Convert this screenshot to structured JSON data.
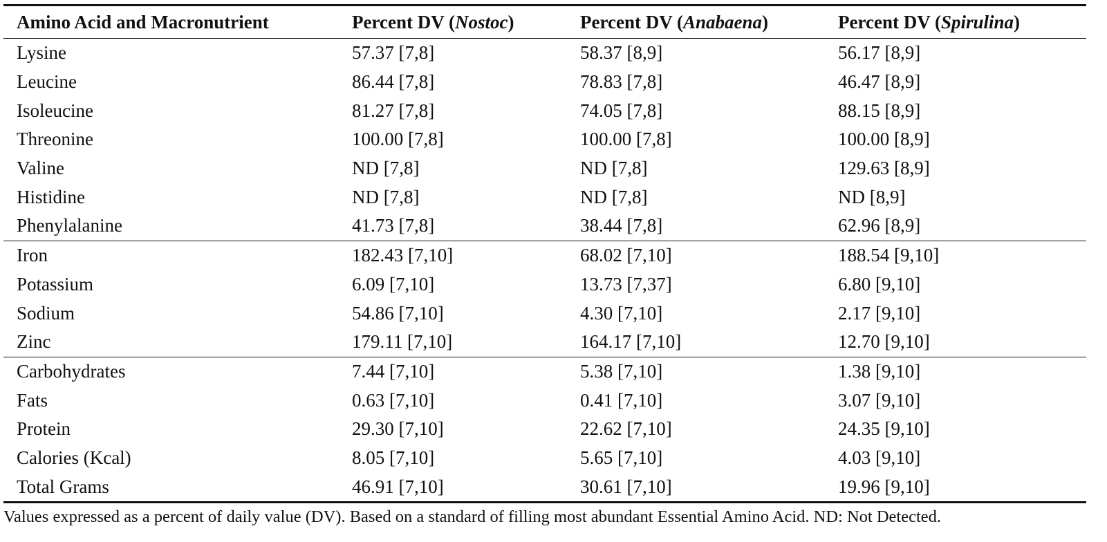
{
  "table": {
    "headers": {
      "col0": "Amino Acid and Macronutrient",
      "col1_prefix": "Percent DV (",
      "col1_species": "Nostoc",
      "col2_prefix": "Percent DV (",
      "col2_species": "Anabaena",
      "col3_prefix": "Percent DV (",
      "col3_species": "Spirulina",
      "suffix": ")"
    },
    "rows": [
      {
        "name": "Lysine",
        "nostoc": "57.37 [7,8]",
        "anabaena": "58.37 [8,9]",
        "spirulina": "56.17 [8,9]"
      },
      {
        "name": "Leucine",
        "nostoc": "86.44 [7,8]",
        "anabaena": "78.83 [7,8]",
        "spirulina": "46.47 [8,9]"
      },
      {
        "name": "Isoleucine",
        "nostoc": "81.27 [7,8]",
        "anabaena": "74.05 [7,8]",
        "spirulina": "88.15 [8,9]"
      },
      {
        "name": "Threonine",
        "nostoc": "100.00 [7,8]",
        "anabaena": "100.00 [7,8]",
        "spirulina": "100.00 [8,9]"
      },
      {
        "name": "Valine",
        "nostoc": "ND [7,8]",
        "anabaena": "ND [7,8]",
        "spirulina": "129.63 [8,9]"
      },
      {
        "name": "Histidine",
        "nostoc": "ND [7,8]",
        "anabaena": "ND [7,8]",
        "spirulina": "ND [8,9]"
      },
      {
        "name": "Phenylalanine",
        "nostoc": "41.73 [7,8]",
        "anabaena": "38.44 [7,8]",
        "spirulina": "62.96 [8,9]"
      },
      {
        "name": "Iron",
        "nostoc": "182.43 [7,10]",
        "anabaena": "68.02 [7,10]",
        "spirulina": "188.54 [9,10]"
      },
      {
        "name": "Potassium",
        "nostoc": "6.09 [7,10]",
        "anabaena": "13.73 [7,37]",
        "spirulina": "6.80 [9,10]"
      },
      {
        "name": "Sodium",
        "nostoc": "54.86 [7,10]",
        "anabaena": "4.30 [7,10]",
        "spirulina": "2.17 [9,10]"
      },
      {
        "name": "Zinc",
        "nostoc": "179.11 [7,10]",
        "anabaena": "164.17 [7,10]",
        "spirulina": "12.70 [9,10]"
      },
      {
        "name": "Carbohydrates",
        "nostoc": "7.44 [7,10]",
        "anabaena": "5.38 [7,10]",
        "spirulina": "1.38 [9,10]"
      },
      {
        "name": "Fats",
        "nostoc": "0.63 [7,10]",
        "anabaena": "0.41 [7,10]",
        "spirulina": "3.07 [9,10]"
      },
      {
        "name": "Protein",
        "nostoc": "29.30 [7,10]",
        "anabaena": "22.62 [7,10]",
        "spirulina": "24.35 [9,10]"
      },
      {
        "name": "Calories (Kcal)",
        "nostoc": "8.05 [7,10]",
        "anabaena": "5.65 [7,10]",
        "spirulina": "4.03 [9,10]"
      },
      {
        "name": "Total Grams",
        "nostoc": "46.91 [7,10]",
        "anabaena": "30.61 [7,10]",
        "spirulina": "19.96 [9,10]"
      }
    ]
  },
  "footnote": "Values expressed as a percent of daily value (DV). Based on a standard of filling most abundant Essential Amino Acid. ND: Not Detected."
}
